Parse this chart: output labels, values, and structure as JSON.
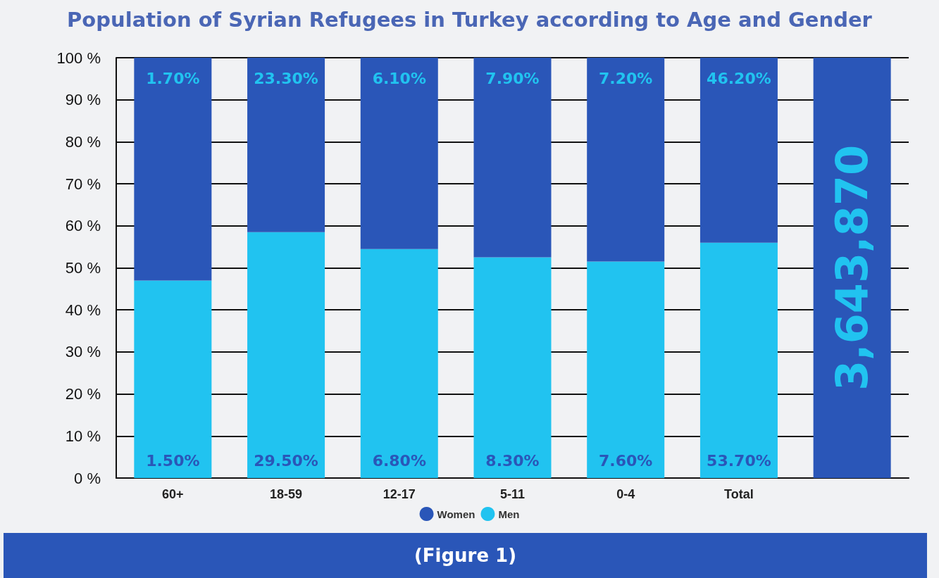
{
  "chart_data": {
    "type": "bar",
    "title": "Population of Syrian Refugees in Turkey according to Age and Gender",
    "categories": [
      "60+",
      "18-59",
      "12-17",
      "5-11",
      "0-4",
      "Total",
      null
    ],
    "stacked": true,
    "series": [
      {
        "name": "Men",
        "color": "#21c3f0",
        "values": [
          47,
          58.5,
          54.5,
          52.5,
          51.5,
          56,
          null
        ]
      },
      {
        "name": "Women",
        "color": "#2a56b8",
        "values": [
          53,
          41.5,
          45.5,
          47.5,
          48.5,
          44,
          100
        ]
      }
    ],
    "ylim": [
      0,
      100
    ],
    "yticks": [
      {
        "value": 0,
        "label": "0 %"
      },
      {
        "value": 10,
        "label": "10 %"
      },
      {
        "value": 20,
        "label": "20 %"
      },
      {
        "value": 30,
        "label": "30 %"
      },
      {
        "value": 40,
        "label": "40 %"
      },
      {
        "value": 50,
        "label": "50 %"
      },
      {
        "value": 60,
        "label": "60 %"
      },
      {
        "value": 70,
        "label": "70 %"
      },
      {
        "value": 80,
        "label": "80 %"
      },
      {
        "value": 90,
        "label": "90 %"
      },
      {
        "value": 100,
        "label": "100 %"
      }
    ],
    "grid": "y",
    "legend": "bottom",
    "annotations": [
      {
        "text": "1.50%",
        "x": "60+",
        "y": 0
      },
      {
        "text": "29.50%",
        "x": "18-59",
        "y": 0
      },
      {
        "text": "6.80%",
        "x": "12-17",
        "y": 0
      },
      {
        "text": "8.30%",
        "x": "5-11",
        "y": 0
      },
      {
        "text": "7.60%",
        "x": "0-4",
        "y": 0
      },
      {
        "text": "53.70%",
        "x": "Total",
        "y": 0
      },
      {
        "text": "1.70%",
        "x": "60+",
        "y": 100
      },
      {
        "text": "23.30%",
        "x": "18-59",
        "y": 100
      },
      {
        "text": "6.10%",
        "x": "12-17",
        "y": 100
      },
      {
        "text": "7.90%",
        "x": "5-11",
        "y": 100
      },
      {
        "text": "7.20%",
        "x": "0-4",
        "y": 100
      },
      {
        "text": "46.20%",
        "x": "Total",
        "y": 100
      },
      "3,643,870",
      "(Figure 1)"
    ]
  }
}
